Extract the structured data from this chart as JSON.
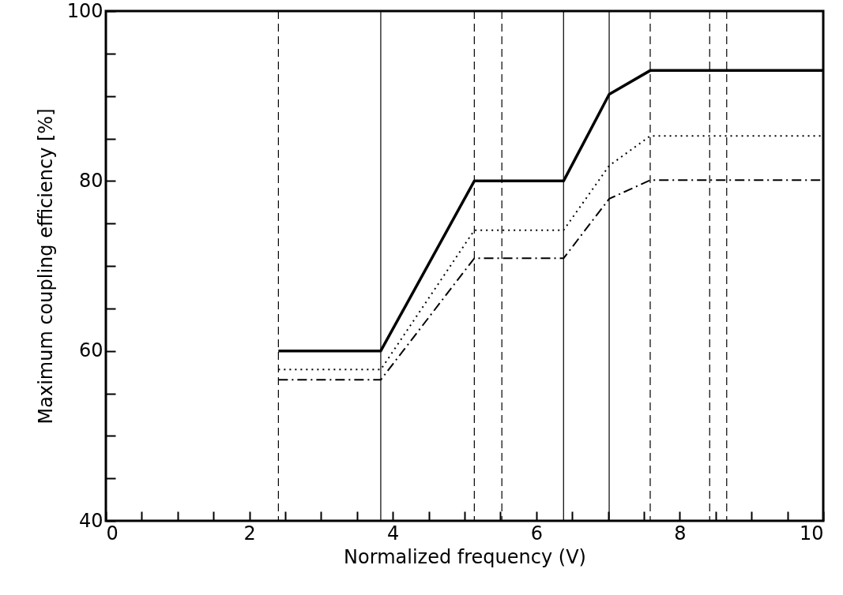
{
  "chart_data": {
    "type": "line",
    "xlabel": "Normalized frequency (V)",
    "ylabel": "Maximum coupling efficiency [%]",
    "xlim": [
      0,
      10
    ],
    "ylim": [
      40,
      100
    ],
    "xticks": [
      0,
      {
        "value": 0.5,
        "label": null
      },
      {
        "value": 1,
        "label": null
      },
      {
        "value": 1.5,
        "label": null
      },
      2,
      {
        "value": 2.5,
        "label": null
      },
      {
        "value": 3,
        "label": null
      },
      {
        "value": 3.5,
        "label": null
      },
      4,
      {
        "value": 4.5,
        "label": null
      },
      {
        "value": 5,
        "label": null
      },
      {
        "value": 5.5,
        "label": null
      },
      6,
      {
        "value": 6.5,
        "label": null
      },
      {
        "value": 7,
        "label": null
      },
      {
        "value": 7.5,
        "label": null
      },
      8,
      {
        "value": 8.5,
        "label": null
      },
      {
        "value": 9,
        "label": null
      },
      {
        "value": 9.5,
        "label": null
      },
      10
    ],
    "yticks": [
      40,
      {
        "value": 45,
        "label": null
      },
      {
        "value": 50,
        "label": null
      },
      {
        "value": 55,
        "label": null
      },
      60,
      {
        "value": 65,
        "label": null
      },
      {
        "value": 70,
        "label": null
      },
      {
        "value": 75,
        "label": null
      },
      80,
      {
        "value": 85,
        "label": null
      },
      {
        "value": 90,
        "label": null
      },
      {
        "value": 95,
        "label": null
      },
      100
    ],
    "grid": false,
    "series": [
      {
        "color": "#000000",
        "line_style": "solid",
        "x": [
          2.405,
          3.832,
          5.136,
          6.38,
          7.016,
          7.588,
          10
        ],
        "values": [
          60,
          60,
          80,
          80,
          90.2,
          93,
          93
        ]
      },
      {
        "color": "#000000",
        "line_style": "dotted",
        "x": [
          2.405,
          3.832,
          5.136,
          6.38,
          7.016,
          7.588,
          10
        ],
        "values": [
          57.8,
          57.8,
          74.2,
          74.2,
          81.8,
          85.3,
          85.3
        ]
      },
      {
        "color": "#000000",
        "line_style": "dashdot",
        "x": [
          2.405,
          3.832,
          5.136,
          6.38,
          7.016,
          7.588,
          10
        ],
        "values": [
          56.6,
          56.6,
          70.9,
          70.9,
          77.9,
          80.1,
          80.1
        ]
      }
    ],
    "ref_lines": [
      {
        "axis": "x",
        "value": 2.405,
        "line_style": "dashed"
      },
      {
        "axis": "x",
        "value": 3.832,
        "line_style": "solid"
      },
      {
        "axis": "x",
        "value": 5.136,
        "line_style": "dashed"
      },
      {
        "axis": "x",
        "value": 5.52,
        "line_style": "dashed"
      },
      {
        "axis": "x",
        "value": 6.38,
        "line_style": "solid"
      },
      {
        "axis": "x",
        "value": 7.016,
        "line_style": "solid"
      },
      {
        "axis": "x",
        "value": 7.588,
        "line_style": "dashed"
      },
      {
        "axis": "x",
        "value": 8.417,
        "line_style": "dashed"
      },
      {
        "axis": "x",
        "value": 8.654,
        "line_style": "dashed"
      }
    ]
  }
}
